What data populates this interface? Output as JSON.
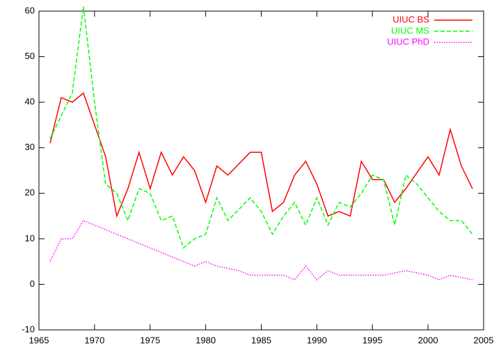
{
  "chart_data": {
    "type": "line",
    "x": [
      1966,
      1967,
      1968,
      1969,
      1970,
      1971,
      1972,
      1973,
      1974,
      1975,
      1976,
      1977,
      1978,
      1979,
      1980,
      1981,
      1982,
      1983,
      1984,
      1985,
      1986,
      1987,
      1988,
      1989,
      1990,
      1991,
      1992,
      1993,
      1994,
      1995,
      1996,
      1997,
      1998,
      1999,
      2000,
      2001,
      2002,
      2003,
      2004
    ],
    "series": [
      {
        "name": "UIUC BS",
        "color": "#ff0000",
        "dash": "solid",
        "values": [
          31,
          41,
          40,
          42,
          35,
          28,
          15,
          21,
          29,
          21,
          29,
          24,
          28,
          25,
          18,
          26,
          24,
          26.5,
          29,
          29,
          16,
          18,
          24,
          27,
          22,
          15,
          16,
          15,
          27,
          23,
          23,
          18,
          21,
          24.5,
          28,
          24,
          34,
          26,
          21
        ]
      },
      {
        "name": "UIUC MS",
        "color": "#00ff00",
        "dash": "dashed",
        "values": [
          32,
          37,
          42,
          61,
          40,
          22,
          20,
          14,
          21,
          20,
          14,
          15,
          8,
          10,
          11,
          19,
          14,
          16.5,
          19,
          16,
          11,
          15,
          18,
          13,
          19,
          13,
          18,
          17,
          20,
          24,
          23,
          13,
          24,
          22,
          19,
          16,
          14,
          14,
          11
        ]
      },
      {
        "name": "UIUC PhD",
        "color": "#ff00ff",
        "dash": "dotted",
        "values": [
          5,
          10,
          10,
          14,
          13,
          12,
          11,
          10,
          9,
          8,
          7,
          6,
          5,
          4,
          5,
          4,
          3.5,
          3,
          2,
          2,
          2,
          2,
          1,
          4,
          1,
          3,
          2,
          2,
          2,
          2,
          2,
          2.5,
          3,
          2.5,
          2,
          1,
          2,
          1.5,
          1
        ]
      }
    ],
    "xlim": [
      1965,
      2005
    ],
    "xticks": [
      1965,
      1970,
      1975,
      1980,
      1985,
      1990,
      1995,
      2000,
      2005
    ],
    "ylim": [
      -10,
      60
    ],
    "yticks": [
      -10,
      0,
      10,
      20,
      30,
      40,
      50,
      60
    ],
    "legend": "top-right"
  }
}
